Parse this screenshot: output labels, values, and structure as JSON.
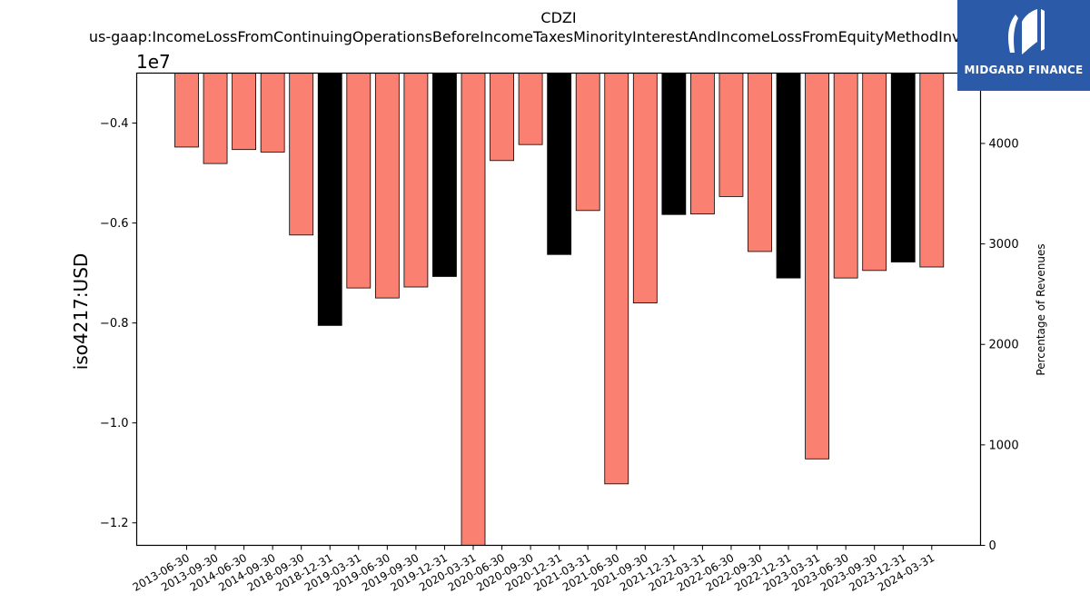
{
  "chart_data": {
    "type": "bar",
    "title": "CDZI",
    "subtitle": "us-gaap:IncomeLossFromContinuingOperationsBeforeIncomeTaxesMinorityInterestAndIncomeLossFromEquityMethodInvestments",
    "ylabel": "iso4217:USD",
    "y_scale_label": "1e7",
    "y2label": "Percentage of Revenues",
    "ylim": [
      -1.245,
      -0.3
    ],
    "y_ticks": [
      -0.4,
      -0.6,
      -0.8,
      -1.0,
      -1.2
    ],
    "y_tick_labels": [
      "−0.4",
      "−0.6",
      "−0.8",
      "−1.0",
      "−1.2"
    ],
    "y2lim": [
      0,
      4700
    ],
    "y2_ticks": [
      0,
      1000,
      2000,
      3000,
      4000
    ],
    "y2_tick_labels": [
      "0",
      "1000",
      "2000",
      "3000",
      "4000"
    ],
    "categories": [
      "2013-06-30",
      "2013-09-30",
      "2014-06-30",
      "2014-09-30",
      "2018-09-30",
      "2018-12-31",
      "2019-03-31",
      "2019-06-30",
      "2019-09-30",
      "2019-12-31",
      "2020-03-31",
      "2020-06-30",
      "2020-09-30",
      "2020-12-31",
      "2021-03-31",
      "2021-06-30",
      "2021-09-30",
      "2021-12-31",
      "2022-03-31",
      "2022-06-30",
      "2022-09-30",
      "2022-12-31",
      "2023-03-31",
      "2023-06-30",
      "2023-09-30",
      "2023-12-31",
      "2024-03-31"
    ],
    "values": [
      -0.448,
      -0.481,
      -0.453,
      -0.458,
      -0.624,
      -0.805,
      -0.73,
      -0.75,
      -0.728,
      -0.707,
      -1.28,
      -0.475,
      -0.443,
      -0.663,
      -0.575,
      -1.122,
      -0.76,
      -0.583,
      -0.582,
      -0.547,
      -0.657,
      -0.71,
      -1.072,
      -0.71,
      -0.695,
      -0.678,
      -0.688
    ],
    "bar_colors": [
      "#fa8072",
      "#fa8072",
      "#fa8072",
      "#fa8072",
      "#fa8072",
      "#000000",
      "#fa8072",
      "#fa8072",
      "#fa8072",
      "#000000",
      "#fa8072",
      "#fa8072",
      "#fa8072",
      "#000000",
      "#fa8072",
      "#fa8072",
      "#fa8072",
      "#000000",
      "#fa8072",
      "#fa8072",
      "#fa8072",
      "#000000",
      "#fa8072",
      "#fa8072",
      "#fa8072",
      "#000000",
      "#fa8072"
    ],
    "colors": {
      "default_bar": "#fa8072",
      "q4_bar": "#000000"
    }
  },
  "watermark": {
    "brand": "MIDGARD FINANCE",
    "background": "#2a5aa8"
  }
}
